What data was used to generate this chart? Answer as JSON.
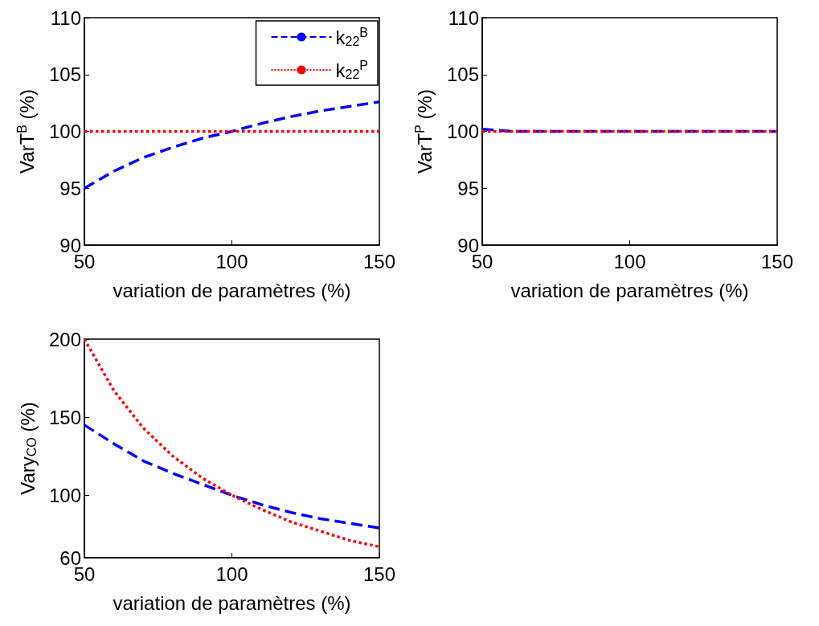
{
  "chart_data": [
    {
      "type": "line",
      "xlabel": "variation de paramètres (%)",
      "ylabel": "VarT$^{B}$ (%)",
      "x": [
        50,
        60,
        70,
        80,
        90,
        100,
        110,
        120,
        130,
        140,
        150
      ],
      "xlim": [
        50,
        150
      ],
      "xticks": [
        50,
        100,
        150
      ],
      "ylim": [
        90,
        110
      ],
      "yticks": [
        90,
        95,
        100,
        105,
        110
      ],
      "grid": false,
      "legend": "top right",
      "marker": "none",
      "series": [
        {
          "name": "k$_{22}$$^{B}$",
          "color": "#0000ff",
          "line_style": "dashed",
          "values": [
            95.0,
            96.5,
            97.7,
            98.6,
            99.4,
            100,
            100.7,
            101.3,
            101.8,
            102.2,
            102.6
          ]
        },
        {
          "name": "k$_{22}$$^{P}$",
          "color": "#ff0000",
          "line_style": "dotted",
          "values": [
            100,
            100,
            100,
            100,
            100,
            100,
            100,
            100,
            100,
            100,
            100
          ]
        }
      ]
    },
    {
      "type": "line",
      "xlabel": "variation de paramètres (%)",
      "ylabel": "VarT$^{P}$ (%)",
      "x": [
        50,
        60,
        70,
        80,
        90,
        100,
        110,
        120,
        130,
        140,
        150
      ],
      "xlim": [
        50,
        150
      ],
      "xticks": [
        50,
        100,
        150
      ],
      "ylim": [
        90,
        110
      ],
      "yticks": [
        90,
        95,
        100,
        105,
        110
      ],
      "grid": false,
      "marker": "none",
      "series": [
        {
          "color": "#0000ff",
          "line_style": "dashed",
          "values": [
            100.2,
            100,
            100,
            100,
            100,
            100,
            100,
            100,
            100,
            100,
            100
          ]
        },
        {
          "color": "#ff0000",
          "line_style": "dotted",
          "values": [
            100,
            100,
            100,
            100,
            100,
            100,
            100,
            100,
            100,
            100,
            100
          ]
        }
      ]
    },
    {
      "type": "line",
      "xlabel": "variation de paramètres (%)",
      "ylabel": "Vary$_{CO}$ (%)",
      "x": [
        50,
        60,
        70,
        80,
        90,
        100,
        110,
        120,
        130,
        140,
        150
      ],
      "xlim": [
        50,
        150
      ],
      "xticks": [
        50,
        100,
        150
      ],
      "ylim": [
        60,
        200
      ],
      "yticks": [
        60,
        100,
        150,
        200
      ],
      "grid": false,
      "marker": "none",
      "series": [
        {
          "color": "#0000ff",
          "line_style": "dashed",
          "values": [
            145,
            133,
            122,
            114,
            107,
            100,
            94,
            89,
            85,
            82,
            79
          ]
        },
        {
          "color": "#ff0000",
          "line_style": "dotted",
          "values": [
            200,
            167,
            143,
            125,
            111,
            100,
            91,
            83,
            77,
            71,
            67
          ]
        }
      ]
    }
  ]
}
